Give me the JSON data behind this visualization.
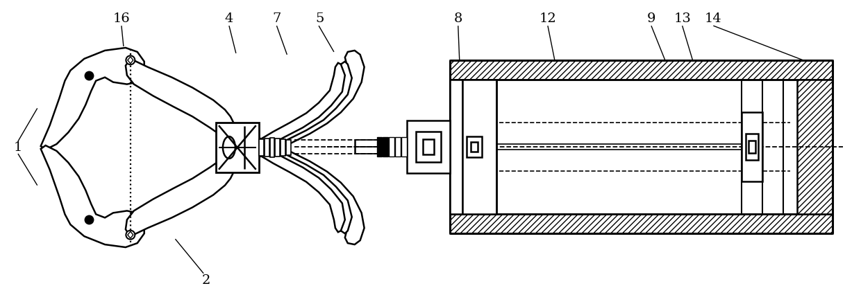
{
  "bg_color": "#ffffff",
  "line_color": "#000000",
  "figsize": [
    12.4,
    4.26
  ],
  "dpi": 100
}
